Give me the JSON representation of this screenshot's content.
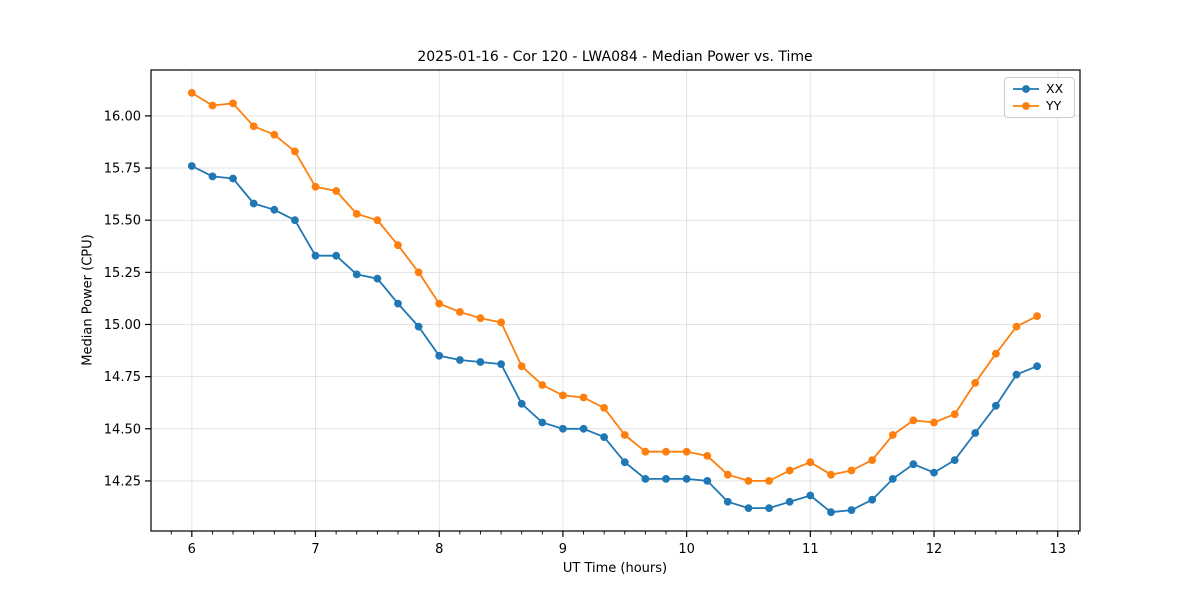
{
  "chart_data": {
    "type": "line",
    "title": "2025-01-16 - Cor 120 - LWA084 - Median Power vs. Time",
    "xlabel": "UT Time (hours)",
    "ylabel": "Median Power (CPU)",
    "xlim": [
      5.67,
      13.18
    ],
    "ylim": [
      14.01,
      16.22
    ],
    "x_ticks": [
      6,
      7,
      8,
      9,
      10,
      11,
      12,
      13
    ],
    "x_minor_ticks_per_interval": 6,
    "y_ticks": [
      14.25,
      14.5,
      14.75,
      15.0,
      15.25,
      15.5,
      15.75,
      16.0
    ],
    "grid": true,
    "legend_position": "upper right",
    "x": [
      6.0,
      6.167,
      6.333,
      6.5,
      6.667,
      6.833,
      7.0,
      7.167,
      7.333,
      7.5,
      7.667,
      7.833,
      8.0,
      8.167,
      8.333,
      8.5,
      8.667,
      8.833,
      9.0,
      9.167,
      9.333,
      9.5,
      9.667,
      9.833,
      10.0,
      10.167,
      10.333,
      10.5,
      10.667,
      10.833,
      11.0,
      11.167,
      11.333,
      11.5,
      11.667,
      11.833,
      12.0,
      12.167,
      12.333,
      12.5,
      12.667,
      12.833
    ],
    "series": [
      {
        "name": "XX",
        "color": "#1f77b4",
        "values": [
          15.76,
          15.71,
          15.7,
          15.58,
          15.55,
          15.5,
          15.33,
          15.33,
          15.24,
          15.22,
          15.1,
          14.99,
          14.85,
          14.83,
          14.82,
          14.81,
          14.62,
          14.53,
          14.5,
          14.5,
          14.46,
          14.34,
          14.26,
          14.26,
          14.26,
          14.25,
          14.15,
          14.12,
          14.12,
          14.15,
          14.18,
          14.1,
          14.11,
          14.16,
          14.26,
          14.33,
          14.29,
          14.35,
          14.48,
          14.61,
          14.76,
          14.8
        ]
      },
      {
        "name": "YY",
        "color": "#ff7f0e",
        "values": [
          16.11,
          16.05,
          16.06,
          15.95,
          15.91,
          15.83,
          15.66,
          15.64,
          15.53,
          15.5,
          15.38,
          15.25,
          15.1,
          15.06,
          15.03,
          15.01,
          14.8,
          14.71,
          14.66,
          14.65,
          14.6,
          14.47,
          14.39,
          14.39,
          14.39,
          14.37,
          14.28,
          14.25,
          14.25,
          14.3,
          14.34,
          14.28,
          14.3,
          14.35,
          14.47,
          14.54,
          14.53,
          14.57,
          14.72,
          14.86,
          14.99,
          15.04
        ]
      }
    ]
  }
}
